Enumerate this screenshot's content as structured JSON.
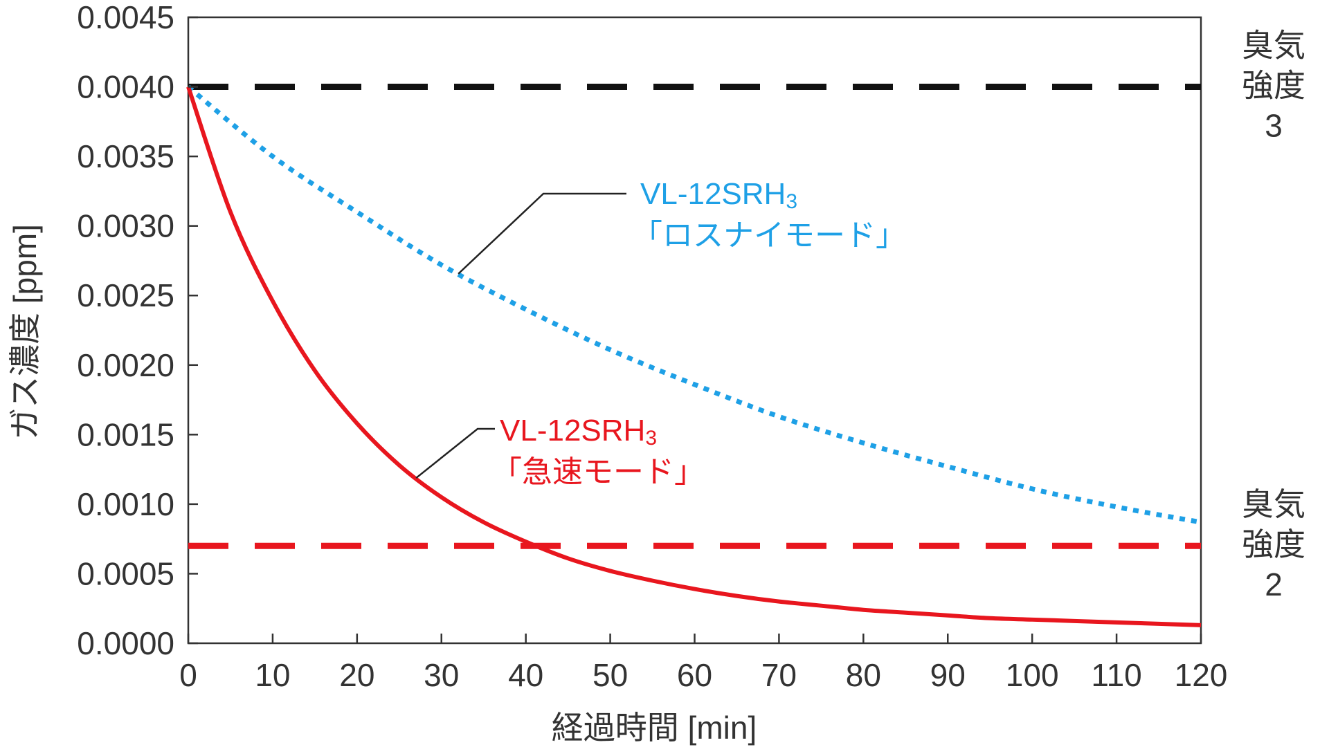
{
  "chart_data": {
    "type": "line",
    "title": "",
    "xlabel": "経過時間 [min]",
    "ylabel": "ガス濃度 [ppm]",
    "xlim": [
      0,
      120
    ],
    "ylim": [
      0,
      0.0045
    ],
    "x_ticks": [
      0,
      10,
      20,
      30,
      40,
      50,
      60,
      70,
      80,
      90,
      100,
      110,
      120
    ],
    "x_tick_labels": [
      "0",
      "10",
      "20",
      "30",
      "40",
      "50",
      "60",
      "70",
      "80",
      "90",
      "100",
      "110",
      "120"
    ],
    "y_ticks": [
      0,
      0.0005,
      0.001,
      0.0015,
      0.002,
      0.0025,
      0.003,
      0.0035,
      0.004,
      0.0045
    ],
    "y_tick_labels": [
      "0.0000",
      "0.0005",
      "0.0010",
      "0.0015",
      "0.0020",
      "0.0025",
      "0.0030",
      "0.0035",
      "0.0040",
      "0.0045"
    ],
    "grid": false,
    "series": [
      {
        "name": "VL-12SRH3「ロスナイモード」",
        "label_line1": "VL-12SRH",
        "label_sub": "3",
        "label_line2": "「ロスナイモード」",
        "style": "dotted",
        "color": "#1ea0e6",
        "x": [
          0,
          10,
          20,
          30,
          40,
          50,
          60,
          70,
          80,
          90,
          100,
          110,
          120
        ],
        "y": [
          0.004,
          0.0035,
          0.0031,
          0.00272,
          0.0024,
          0.00211,
          0.00186,
          0.00163,
          0.00144,
          0.00127,
          0.00111,
          0.00098,
          0.00087
        ]
      },
      {
        "name": "VL-12SRH3「急速モード」",
        "label_line1": "VL-12SRH",
        "label_sub": "3",
        "label_line2": "「急速モード」",
        "style": "solid",
        "color": "#e8161e",
        "x": [
          0,
          5,
          10,
          15,
          20,
          25,
          30,
          35,
          40,
          45,
          50,
          55,
          60,
          65,
          70,
          75,
          80,
          85,
          90,
          95,
          100,
          105,
          110,
          115,
          120
        ],
        "y": [
          0.004,
          0.0031,
          0.00246,
          0.00196,
          0.00158,
          0.00128,
          0.00105,
          0.00087,
          0.00073,
          0.00061,
          0.00052,
          0.00045,
          0.00039,
          0.00034,
          0.0003,
          0.00027,
          0.00024,
          0.00022,
          0.0002,
          0.00018,
          0.00017,
          0.00016,
          0.00015,
          0.00014,
          0.00013
        ]
      }
    ],
    "reference_lines": [
      {
        "value": 0.004,
        "style": "dashed",
        "color": "#111111",
        "label": "臭気強度3",
        "label_lines": [
          "臭気",
          "強度",
          "3"
        ]
      },
      {
        "value": 0.0007,
        "style": "dashed",
        "color": "#e8161e",
        "label": "臭気強度2",
        "label_lines": [
          "臭気",
          "強度",
          "2"
        ]
      }
    ],
    "annotations": [
      {
        "series": 0,
        "pointer_x": 32
      },
      {
        "series": 1,
        "pointer_x": 27
      }
    ]
  }
}
